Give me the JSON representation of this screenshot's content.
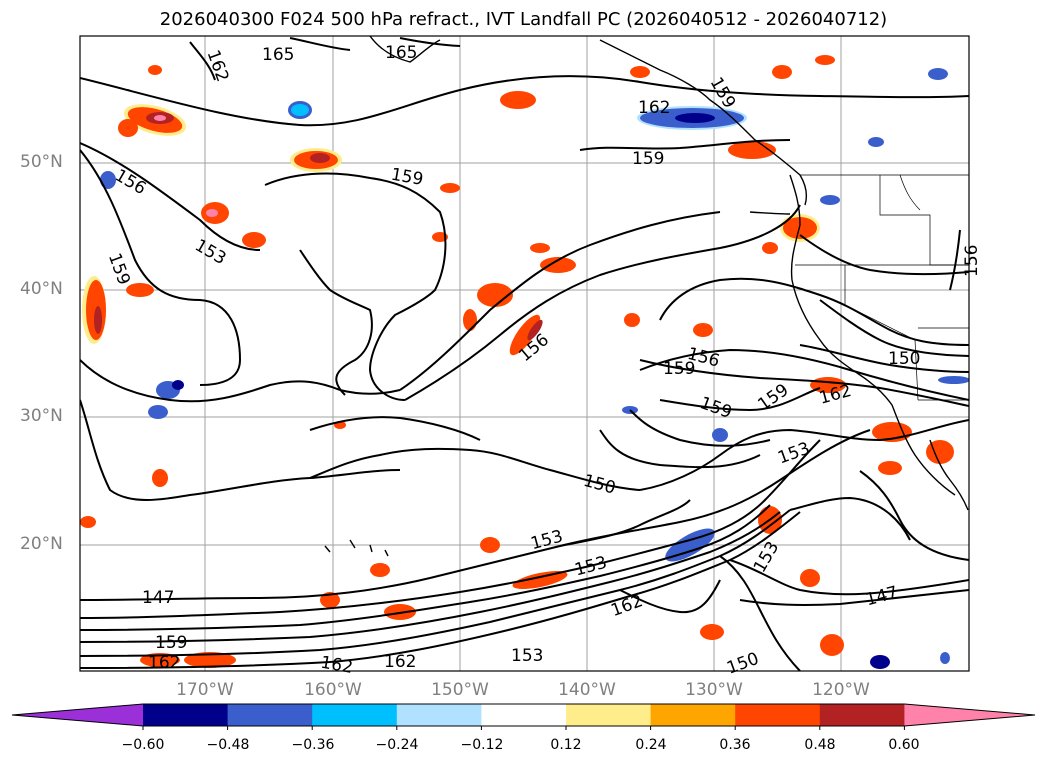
{
  "title": "2026040300 F024 500 hPa refract., IVT Landfall PC (2026040512 - 2026040712)",
  "lat_labels": [
    "50°N",
    "40°N",
    "30°N",
    "20°N"
  ],
  "lon_labels": [
    "170°W",
    "160°W",
    "150°W",
    "140°W",
    "130°W",
    "120°W"
  ],
  "colorbar": {
    "ticks": [
      "−0.60",
      "−0.48",
      "−0.36",
      "−0.24",
      "−0.12",
      "0.12",
      "0.24",
      "0.36",
      "0.48",
      "0.60"
    ],
    "colors": [
      "#9b30d9",
      "#00008b",
      "#3a5fcd",
      "#00bfff",
      "#b0e2ff",
      "#ffffff",
      "#ffec8b",
      "#ffa500",
      "#ff4500",
      "#b22222",
      "#ff82ab"
    ]
  },
  "contour_labels": [
    "165",
    "165",
    "162",
    "156",
    "153",
    "159",
    "159",
    "162",
    "159",
    "159",
    "156",
    "156",
    "150",
    "159",
    "159",
    "159",
    "153",
    "150",
    "153",
    "153",
    "162",
    "153",
    "147",
    "147",
    "159",
    "162",
    "162",
    "162",
    "153",
    "150",
    "156",
    "162"
  ]
}
